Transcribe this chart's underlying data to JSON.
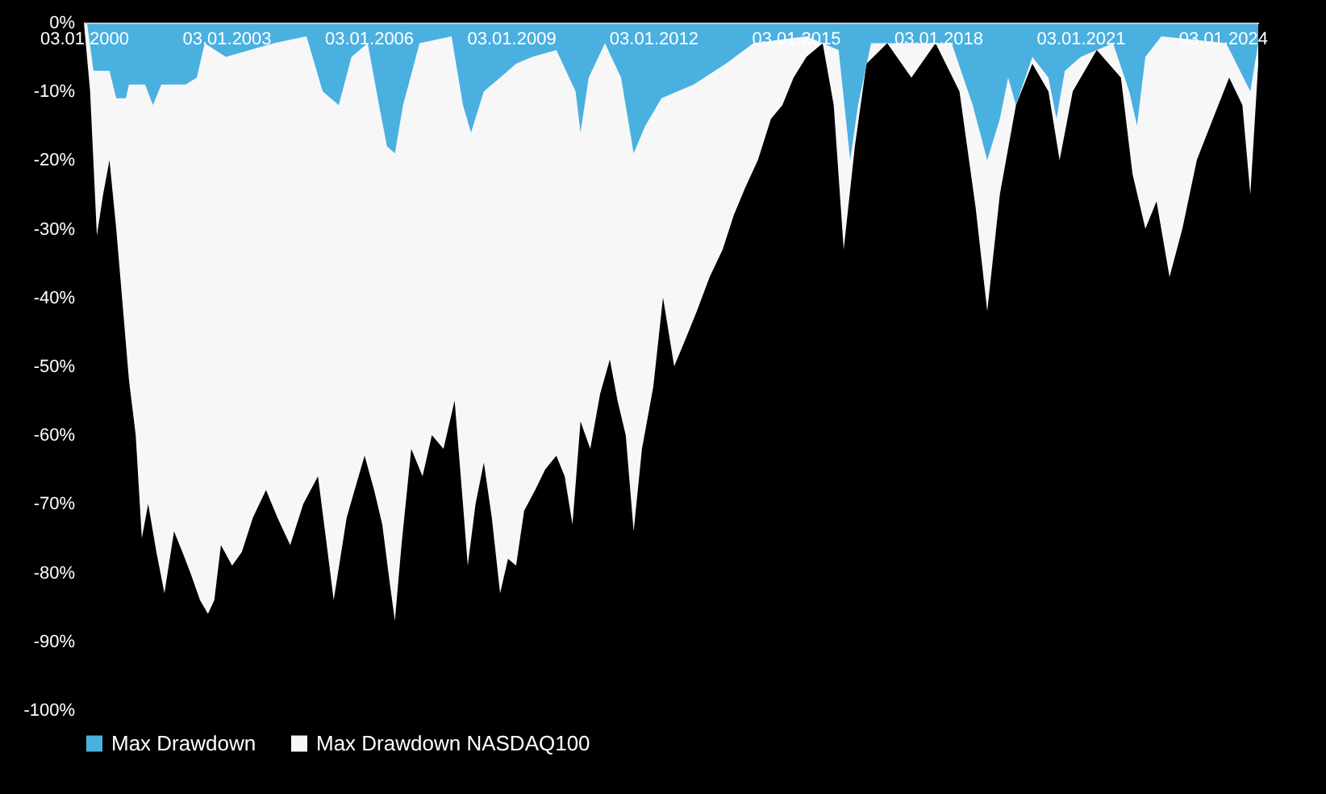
{
  "chart_data": {
    "type": "area",
    "xlim": [
      "2000-01-03",
      "2024-10-03"
    ],
    "xticks": [
      {
        "value": "2000-01-03",
        "label": "03.01.2000"
      },
      {
        "value": "2003-01-03",
        "label": "03.01.2003"
      },
      {
        "value": "2006-01-03",
        "label": "03.01.2006"
      },
      {
        "value": "2009-01-03",
        "label": "03.01.2009"
      },
      {
        "value": "2012-01-03",
        "label": "03.01.2012"
      },
      {
        "value": "2015-01-03",
        "label": "03.01.2015"
      },
      {
        "value": "2018-01-03",
        "label": "03.01.2018"
      },
      {
        "value": "2021-01-03",
        "label": "03.01.2021"
      },
      {
        "value": "2024-01-03",
        "label": "03.01.2024"
      }
    ],
    "ylim": [
      -100,
      0
    ],
    "yticks": [
      {
        "value": 0,
        "label": "0%"
      },
      {
        "value": -10,
        "label": "-10%"
      },
      {
        "value": -20,
        "label": "-20%"
      },
      {
        "value": -30,
        "label": "-30%"
      },
      {
        "value": -40,
        "label": "-40%"
      },
      {
        "value": -50,
        "label": "-50%"
      },
      {
        "value": -60,
        "label": "-60%"
      },
      {
        "value": -70,
        "label": "-70%"
      },
      {
        "value": -80,
        "label": "-80%"
      },
      {
        "value": -90,
        "label": "-90%"
      },
      {
        "value": -100,
        "label": "-100%"
      }
    ],
    "grid": false,
    "legend": "bottom",
    "series": [
      {
        "name": "Max Drawdown",
        "color": "#4ab0e0",
        "x": [
          "2000-01-03",
          "2000-01-27",
          "2000-03-17",
          "2000-07-18",
          "2000-09-08",
          "2000-11-21",
          "2000-12-15",
          "2001-04-18",
          "2001-06-18",
          "2001-08-21",
          "2002-02-23",
          "2002-05-21",
          "2002-07-21",
          "2002-12-30",
          "2004-01-05",
          "2004-09-12",
          "2005-01-14",
          "2005-05-18",
          "2005-08-24",
          "2005-12-27",
          "2006-03-24",
          "2006-05-24",
          "2006-07-24",
          "2006-09-25",
          "2007-01-30",
          "2007-10-03",
          "2007-12-30",
          "2008-03-01",
          "2008-06-08",
          "2008-10-11",
          "2009-02-11",
          "2009-06-15",
          "2009-12-18",
          "2010-05-15",
          "2010-06-22",
          "2010-08-24",
          "2010-12-27",
          "2011-04-30",
          "2011-08-05",
          "2011-11-03",
          "2012-03-06",
          "2012-11-09",
          "2013-07-14",
          "2014-02-12",
          "2015-03-27",
          "2015-11-30",
          "2016-02-27",
          "2016-04-27",
          "2016-08-06",
          "2017-04-12",
          "2018-04-18",
          "2018-09-27",
          "2019-01-17",
          "2019-04-24",
          "2019-06-27",
          "2019-08-26",
          "2019-12-30",
          "2020-05-02",
          "2020-07-03",
          "2020-09-05",
          "2021-01-06",
          "2021-09-11",
          "2022-01-14",
          "2022-03-15",
          "2022-05-18",
          "2022-09-18",
          "2024-01-30",
          "2024-08-03",
          "2024-10-03"
        ],
        "values": [
          0,
          0,
          -7,
          -7,
          -11,
          -11,
          -9,
          -9,
          -12,
          -9,
          -9,
          -8,
          -3,
          -5,
          -3,
          -2,
          -10,
          -12,
          -5,
          -3,
          -12,
          -18,
          -19,
          -12,
          -3,
          -2,
          -12,
          -16,
          -10,
          -8,
          -6,
          -5,
          -4,
          -10,
          -16,
          -8,
          -3,
          -8,
          -19,
          -15,
          -11,
          -9,
          -6,
          -3,
          -2,
          -4,
          -20,
          -12,
          -3,
          -3,
          -3,
          -12,
          -20,
          -14,
          -8,
          -12,
          -5,
          -8,
          -14,
          -7,
          -5,
          -3,
          -10,
          -15,
          -5,
          -2,
          -3,
          -10,
          -3
        ]
      },
      {
        "name": "Max Drawdown NASDAQ100",
        "color": "#f7f7f7",
        "x": [
          "2000-01-03",
          "2000-02-20",
          "2000-04-12",
          "2000-05-30",
          "2000-07-18",
          "2000-09-08",
          "2000-10-27",
          "2000-12-15",
          "2001-02-05",
          "2001-03-24",
          "2001-05-12",
          "2001-07-14",
          "2001-09-14",
          "2001-11-27",
          "2002-01-30",
          "2002-04-01",
          "2002-06-15",
          "2002-08-15",
          "2002-10-03",
          "2002-11-23",
          "2003-02-17",
          "2003-05-03",
          "2003-07-27",
          "2003-11-05",
          "2004-02-01",
          "2004-05-09",
          "2004-08-18",
          "2004-12-09",
          "2005-02-08",
          "2005-04-09",
          "2005-07-18",
          "2005-09-17",
          "2005-12-03",
          "2006-02-14",
          "2006-04-18",
          "2006-06-18",
          "2006-07-24",
          "2006-09-13",
          "2006-11-27",
          "2007-02-22",
          "2007-05-05",
          "2007-08-02",
          "2007-10-27",
          "2007-12-30",
          "2008-02-05",
          "2008-04-05",
          "2008-06-08",
          "2008-08-08",
          "2008-10-11",
          "2008-12-11",
          "2009-02-11",
          "2009-04-14",
          "2009-07-08",
          "2009-09-23",
          "2009-12-18",
          "2010-02-20",
          "2010-04-21",
          "2010-06-22",
          "2010-09-05",
          "2010-11-20",
          "2011-02-03",
          "2011-04-03",
          "2011-06-05",
          "2011-08-05",
          "2011-10-08",
          "2012-01-03",
          "2012-03-18",
          "2012-06-12",
          "2012-09-08",
          "2012-12-03",
          "2013-03-12",
          "2013-06-20",
          "2013-09-14",
          "2013-12-11",
          "2014-03-18",
          "2014-06-27",
          "2014-09-23",
          "2014-12-18",
          "2015-03-27",
          "2015-07-30",
          "2015-10-23",
          "2016-01-08",
          "2016-04-03",
          "2016-07-01",
          "2016-12-08",
          "2017-06-12",
          "2017-12-15",
          "2018-06-17",
          "2018-10-20",
          "2019-01-17",
          "2019-04-24",
          "2019-08-26",
          "2019-12-30",
          "2020-05-02",
          "2020-07-27",
          "2020-11-05",
          "2021-05-09",
          "2021-11-11",
          "2022-02-08",
          "2022-05-18",
          "2022-08-12",
          "2022-11-20",
          "2023-02-27",
          "2023-06-18",
          "2023-10-20",
          "2024-02-22",
          "2024-06-03",
          "2024-08-03",
          "2024-10-03"
        ],
        "values": [
          0,
          -10,
          -31,
          -25,
          -20,
          -30,
          -41,
          -52,
          -60,
          -75,
          -70,
          -77,
          -83,
          -74,
          -77,
          -80,
          -84,
          -86,
          -84,
          -76,
          -79,
          -77,
          -72,
          -68,
          -72,
          -76,
          -70,
          -66,
          -75,
          -84,
          -72,
          -68,
          -63,
          -68,
          -73,
          -82,
          -87,
          -76,
          -62,
          -66,
          -60,
          -62,
          -55,
          -70,
          -79,
          -70,
          -64,
          -72,
          -83,
          -78,
          -79,
          -71,
          -68,
          -65,
          -63,
          -66,
          -73,
          -58,
          -62,
          -54,
          -49,
          -55,
          -60,
          -74,
          -62,
          -53,
          -40,
          -50,
          -46,
          -42,
          -37,
          -33,
          -28,
          -24,
          -20,
          -14,
          -12,
          -8,
          -5,
          -3,
          -12,
          -33,
          -18,
          -6,
          -3,
          -8,
          -3,
          -10,
          -27,
          -42,
          -25,
          -12,
          -6,
          -10,
          -20,
          -10,
          -4,
          -8,
          -22,
          -30,
          -26,
          -37,
          -30,
          -20,
          -14,
          -8,
          -12,
          -25,
          -6
        ]
      }
    ]
  }
}
